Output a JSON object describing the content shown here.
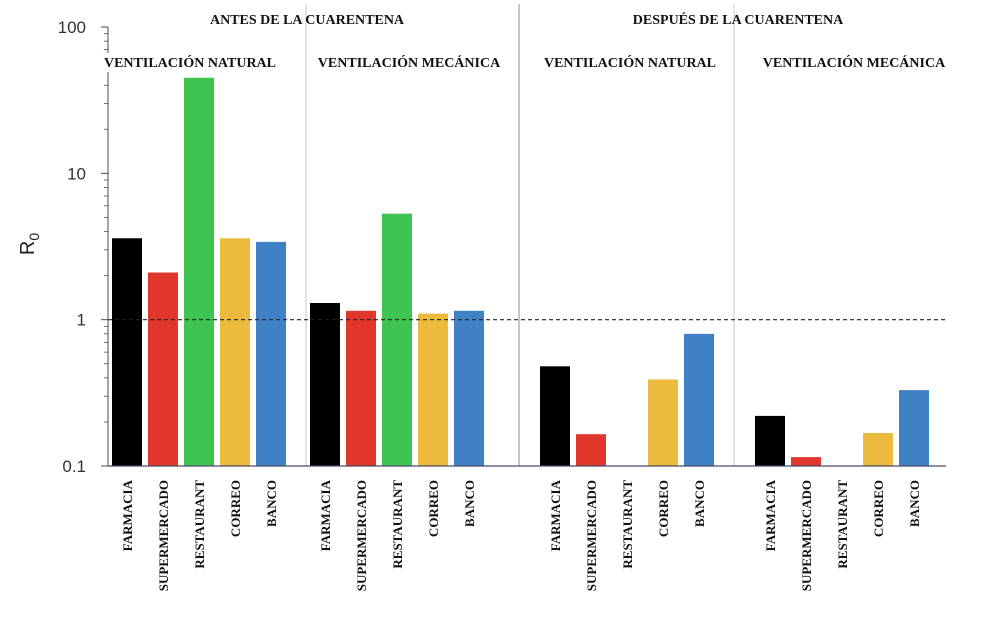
{
  "chart_data": {
    "type": "bar",
    "y_scale": "log",
    "ylim": [
      0.1,
      100
    ],
    "yticks": [
      "0.1",
      "1",
      "10",
      "100"
    ],
    "ylabel": "R",
    "ylabel_sub": "0",
    "reference_line": {
      "value": 1,
      "style": "dashed"
    },
    "group_titles": [
      "ANTES DE LA CUARENTENA",
      "DESPUÉS DE LA CUARENTENA"
    ],
    "category_colors": {
      "FARMACIA": "#000000",
      "SUPERMERCADO": "#e0362c",
      "RESTAURANT": "#3fc351",
      "CORREO": "#ecba3c",
      "BANCO": "#4080c4"
    },
    "panels": [
      {
        "group": "ANTES DE LA CUARENTENA",
        "title": "VENTILACIÓN NATURAL",
        "categories": [
          "FARMACIA",
          "SUPERMERCADO",
          "RESTAURANT",
          "CORREO",
          "BANCO"
        ],
        "values": [
          3.6,
          2.1,
          45,
          3.6,
          3.4
        ]
      },
      {
        "group": "ANTES DE LA CUARENTENA",
        "title": "VENTILACIÓN MECÁNICA",
        "categories": [
          "FARMACIA",
          "SUPERMERCADO",
          "RESTAURANT",
          "CORREO",
          "BANCO"
        ],
        "values": [
          1.3,
          1.15,
          5.3,
          1.1,
          1.15
        ]
      },
      {
        "group": "DESPUÉS DE LA CUARENTENA",
        "title": "VENTILACIÓN NATURAL",
        "categories": [
          "FARMACIA",
          "SUPERMERCADO",
          "RESTAURANT",
          "CORREO",
          "BANCO"
        ],
        "values": [
          0.48,
          0.165,
          null,
          0.39,
          0.8
        ]
      },
      {
        "group": "DESPUÉS DE LA CUARENTENA",
        "title": "VENTILACIÓN MECÁNICA",
        "categories": [
          "FARMACIA",
          "SUPERMERCADO",
          "RESTAURANT",
          "CORREO",
          "BANCO"
        ],
        "values": [
          0.22,
          0.115,
          null,
          0.168,
          0.33
        ]
      }
    ]
  }
}
